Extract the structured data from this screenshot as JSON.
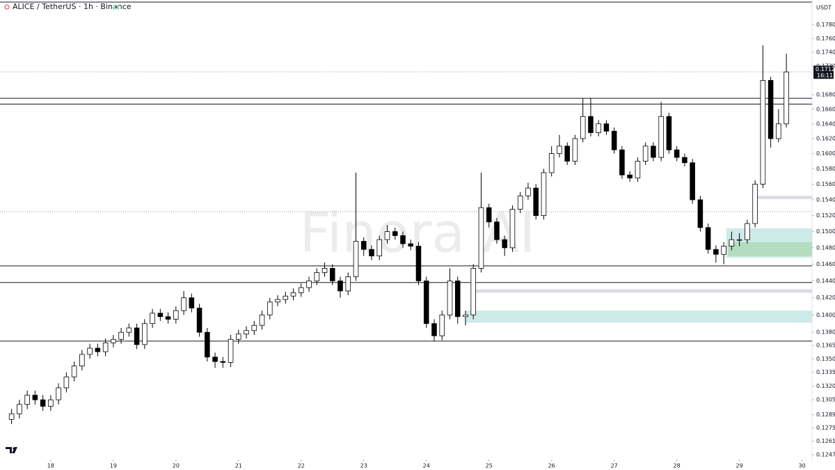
{
  "chart_data": {
    "type": "candlestick",
    "title": "ALICE / TetherUS · 1h · Binance",
    "currency": "USDT",
    "watermark": "Finora AI",
    "log_y": true,
    "up_color": "#ffffff",
    "down_color": "#000000",
    "edge_color": "#000000",
    "xlim": [
      17.19,
      30.16
    ],
    "xticks": [
      18,
      19,
      20,
      21,
      22,
      23,
      24,
      25,
      26,
      27,
      28,
      29,
      30
    ],
    "ylim": [
      0.1242,
      0.1817
    ],
    "yticks": [
      {
        "value": 0.178,
        "label": "0.1780"
      },
      {
        "value": 0.176,
        "label": "0.1760"
      },
      {
        "value": 0.174,
        "label": "0.1740"
      },
      {
        "value": 0.172,
        "label": "0.1720"
      },
      {
        "value": 0.168,
        "label": "0.1680"
      },
      {
        "value": 0.166,
        "label": "0.1660"
      },
      {
        "value": 0.164,
        "label": "0.1640"
      },
      {
        "value": 0.162,
        "label": "0.1620"
      },
      {
        "value": 0.16,
        "label": "0.1600"
      },
      {
        "value": 0.158,
        "label": "0.1580"
      },
      {
        "value": 0.156,
        "label": "0.1560"
      },
      {
        "value": 0.154,
        "label": "0.1540"
      },
      {
        "value": 0.152,
        "label": "0.1520"
      },
      {
        "value": 0.15,
        "label": "0.1500"
      },
      {
        "value": 0.148,
        "label": "0.1480"
      },
      {
        "value": 0.146,
        "label": "0.1460"
      },
      {
        "value": 0.144,
        "label": "0.1440"
      },
      {
        "value": 0.142,
        "label": "0.1420"
      },
      {
        "value": 0.14,
        "label": "0.1400"
      },
      {
        "value": 0.138,
        "label": "0.1380"
      },
      0.1365,
      {
        "value": 0.135,
        "label": "0.1350"
      },
      0.1335,
      {
        "value": 0.132,
        "label": "0.1320"
      },
      0.1305,
      0.1289,
      0.1275,
      0.1261,
      0.1247
    ],
    "last_price": 0.1712,
    "countdown": "16:11",
    "levels": [
      0.1675,
      0.1667,
      0.1458,
      0.1438,
      0.137
    ],
    "dotted_levels": [
      0.1712,
      0.1525
    ],
    "zones": [
      {
        "low": 0.1391,
        "high": 0.1405,
        "start": 24.63,
        "color": "#b2dfdb"
      },
      {
        "low": 0.1426,
        "high": 0.143,
        "start": 24.74,
        "color": "#c8c8d4"
      },
      {
        "low": 0.1541,
        "high": 0.1545,
        "start": 29.29,
        "color": "#c8c8d4"
      },
      {
        "low": 0.1468,
        "high": 0.1504,
        "start": 28.79,
        "color": "#b2dfdb"
      },
      {
        "low": 0.147,
        "high": 0.1487,
        "start": 28.82,
        "color": "#a5d6a7"
      }
    ],
    "series": [
      {
        "x": [
          17.375,
          17.5,
          17.625,
          17.75,
          17.875,
          18,
          18.125,
          18.25,
          18.375,
          18.5,
          18.625,
          18.75,
          18.875,
          19,
          19.125,
          19.25,
          19.375,
          19.5,
          19.625,
          19.75,
          19.875,
          20,
          20.125,
          20.25,
          20.375,
          20.5,
          20.625,
          20.75,
          20.875,
          21,
          21.125,
          21.25,
          21.375,
          21.5,
          21.625,
          21.75,
          21.875,
          22,
          22.125,
          22.25,
          22.375,
          22.5,
          22.625,
          22.75,
          22.875,
          23,
          23.125,
          23.25,
          23.375,
          23.5,
          23.625,
          23.75,
          23.875,
          24,
          24.125,
          24.25,
          24.375,
          24.5,
          24.625,
          24.75,
          24.875,
          25,
          25.125,
          25.25,
          25.375,
          25.5,
          25.625,
          25.75,
          25.875,
          26,
          26.125,
          26.25,
          26.375,
          26.5,
          26.625,
          26.75,
          26.875,
          27,
          27.125,
          27.25,
          27.375,
          27.5,
          27.625,
          27.75,
          27.875,
          28,
          28.125,
          28.25,
          28.375,
          28.5,
          28.625,
          28.75,
          28.875,
          29,
          29.125,
          29.25,
          29.375,
          29.5,
          29.625,
          29.75
        ],
        "open": [
          0.1284,
          0.129,
          0.13,
          0.131,
          0.1305,
          0.1298,
          0.1305,
          0.1318,
          0.133,
          0.1342,
          0.1355,
          0.1362,
          0.1358,
          0.1368,
          0.1372,
          0.138,
          0.1385,
          0.1366,
          0.139,
          0.1402,
          0.1398,
          0.1395,
          0.1405,
          0.142,
          0.1408,
          0.138,
          0.1352,
          0.1347,
          0.1346,
          0.1372,
          0.1378,
          0.1382,
          0.1388,
          0.14,
          0.1415,
          0.1418,
          0.1422,
          0.1426,
          0.1432,
          0.144,
          0.145,
          0.1455,
          0.144,
          0.1428,
          0.1445,
          0.1488,
          0.1478,
          0.147,
          0.149,
          0.15,
          0.1495,
          0.1485,
          0.1482,
          0.144,
          0.139,
          0.1376,
          0.14,
          0.144,
          0.1398,
          0.14,
          0.1455,
          0.153,
          0.1512,
          0.149,
          0.148,
          0.1528,
          0.1545,
          0.1555,
          0.152,
          0.1575,
          0.16,
          0.161,
          0.159,
          0.162,
          0.165,
          0.1628,
          0.164,
          0.163,
          0.1605,
          0.1572,
          0.1568,
          0.159,
          0.161,
          0.1595,
          0.165,
          0.1605,
          0.1595,
          0.1588,
          0.154,
          0.1505,
          0.1478,
          0.1472,
          0.1482,
          0.149,
          0.149,
          0.151,
          0.156,
          0.17,
          0.162,
          0.164
        ],
        "high": [
          0.1295,
          0.1305,
          0.1315,
          0.1315,
          0.131,
          0.131,
          0.1323,
          0.1335,
          0.1347,
          0.136,
          0.1367,
          0.1367,
          0.1373,
          0.1377,
          0.1385,
          0.139,
          0.139,
          0.1395,
          0.1407,
          0.1407,
          0.1403,
          0.141,
          0.1428,
          0.1425,
          0.1413,
          0.1385,
          0.1357,
          0.1352,
          0.1377,
          0.1383,
          0.1387,
          0.1393,
          0.1405,
          0.142,
          0.1423,
          0.1427,
          0.1431,
          0.1437,
          0.1445,
          0.1455,
          0.1462,
          0.146,
          0.1445,
          0.145,
          0.1575,
          0.1493,
          0.1483,
          0.1495,
          0.1508,
          0.1505,
          0.15,
          0.149,
          0.1487,
          0.1445,
          0.1395,
          0.1405,
          0.1455,
          0.1445,
          0.1405,
          0.146,
          0.1575,
          0.1535,
          0.1517,
          0.1495,
          0.1533,
          0.155,
          0.1562,
          0.156,
          0.158,
          0.161,
          0.1625,
          0.1615,
          0.1625,
          0.1675,
          0.1675,
          0.1645,
          0.1645,
          0.1635,
          0.161,
          0.1577,
          0.1595,
          0.1615,
          0.1615,
          0.167,
          0.1655,
          0.161,
          0.16,
          0.1593,
          0.1545,
          0.151,
          0.1483,
          0.1487,
          0.15,
          0.1498,
          0.1515,
          0.1565,
          0.175,
          0.1705,
          0.166,
          0.1738
        ],
        "low": [
          0.1279,
          0.1285,
          0.1295,
          0.13,
          0.1293,
          0.1293,
          0.13,
          0.1313,
          0.1325,
          0.1337,
          0.135,
          0.1353,
          0.1353,
          0.1363,
          0.1367,
          0.1375,
          0.1361,
          0.1361,
          0.1385,
          0.1393,
          0.139,
          0.139,
          0.14,
          0.1403,
          0.1375,
          0.1347,
          0.134,
          0.134,
          0.1341,
          0.1367,
          0.1373,
          0.1377,
          0.1383,
          0.1395,
          0.141,
          0.1413,
          0.1417,
          0.1421,
          0.1427,
          0.1435,
          0.1445,
          0.1435,
          0.142,
          0.1423,
          0.144,
          0.147,
          0.1465,
          0.1465,
          0.1485,
          0.149,
          0.148,
          0.1477,
          0.1435,
          0.1385,
          0.137,
          0.1371,
          0.1395,
          0.139,
          0.1388,
          0.1395,
          0.145,
          0.1505,
          0.1485,
          0.147,
          0.1475,
          0.1523,
          0.154,
          0.1515,
          0.1515,
          0.157,
          0.1595,
          0.1585,
          0.1585,
          0.1615,
          0.1623,
          0.1623,
          0.1625,
          0.16,
          0.1567,
          0.1563,
          0.1563,
          0.1585,
          0.159,
          0.159,
          0.16,
          0.159,
          0.1583,
          0.1535,
          0.15,
          0.1473,
          0.1462,
          0.146,
          0.1477,
          0.1482,
          0.1485,
          0.1505,
          0.1555,
          0.1608,
          0.1615,
          0.1635
        ],
        "close": [
          0.129,
          0.13,
          0.131,
          0.1305,
          0.1298,
          0.1305,
          0.1318,
          0.133,
          0.1342,
          0.1355,
          0.1362,
          0.1358,
          0.1368,
          0.1372,
          0.138,
          0.1385,
          0.1366,
          0.139,
          0.1402,
          0.1398,
          0.1395,
          0.1405,
          0.142,
          0.1408,
          0.138,
          0.1352,
          0.1347,
          0.1346,
          0.1372,
          0.1378,
          0.1382,
          0.1388,
          0.14,
          0.1415,
          0.1418,
          0.1422,
          0.1426,
          0.1432,
          0.144,
          0.145,
          0.1455,
          0.144,
          0.1428,
          0.1445,
          0.1488,
          0.1478,
          0.147,
          0.149,
          0.15,
          0.1495,
          0.1485,
          0.1482,
          0.144,
          0.139,
          0.1376,
          0.14,
          0.144,
          0.1398,
          0.14,
          0.1455,
          0.153,
          0.1512,
          0.149,
          0.148,
          0.1528,
          0.1545,
          0.1555,
          0.152,
          0.1575,
          0.16,
          0.161,
          0.159,
          0.162,
          0.165,
          0.1628,
          0.164,
          0.163,
          0.1605,
          0.1572,
          0.1568,
          0.159,
          0.161,
          0.1595,
          0.165,
          0.1605,
          0.1595,
          0.1588,
          0.154,
          0.1505,
          0.1478,
          0.1472,
          0.1482,
          0.149,
          0.149,
          0.151,
          0.156,
          0.17,
          0.162,
          0.164,
          0.1712
        ]
      }
    ]
  }
}
